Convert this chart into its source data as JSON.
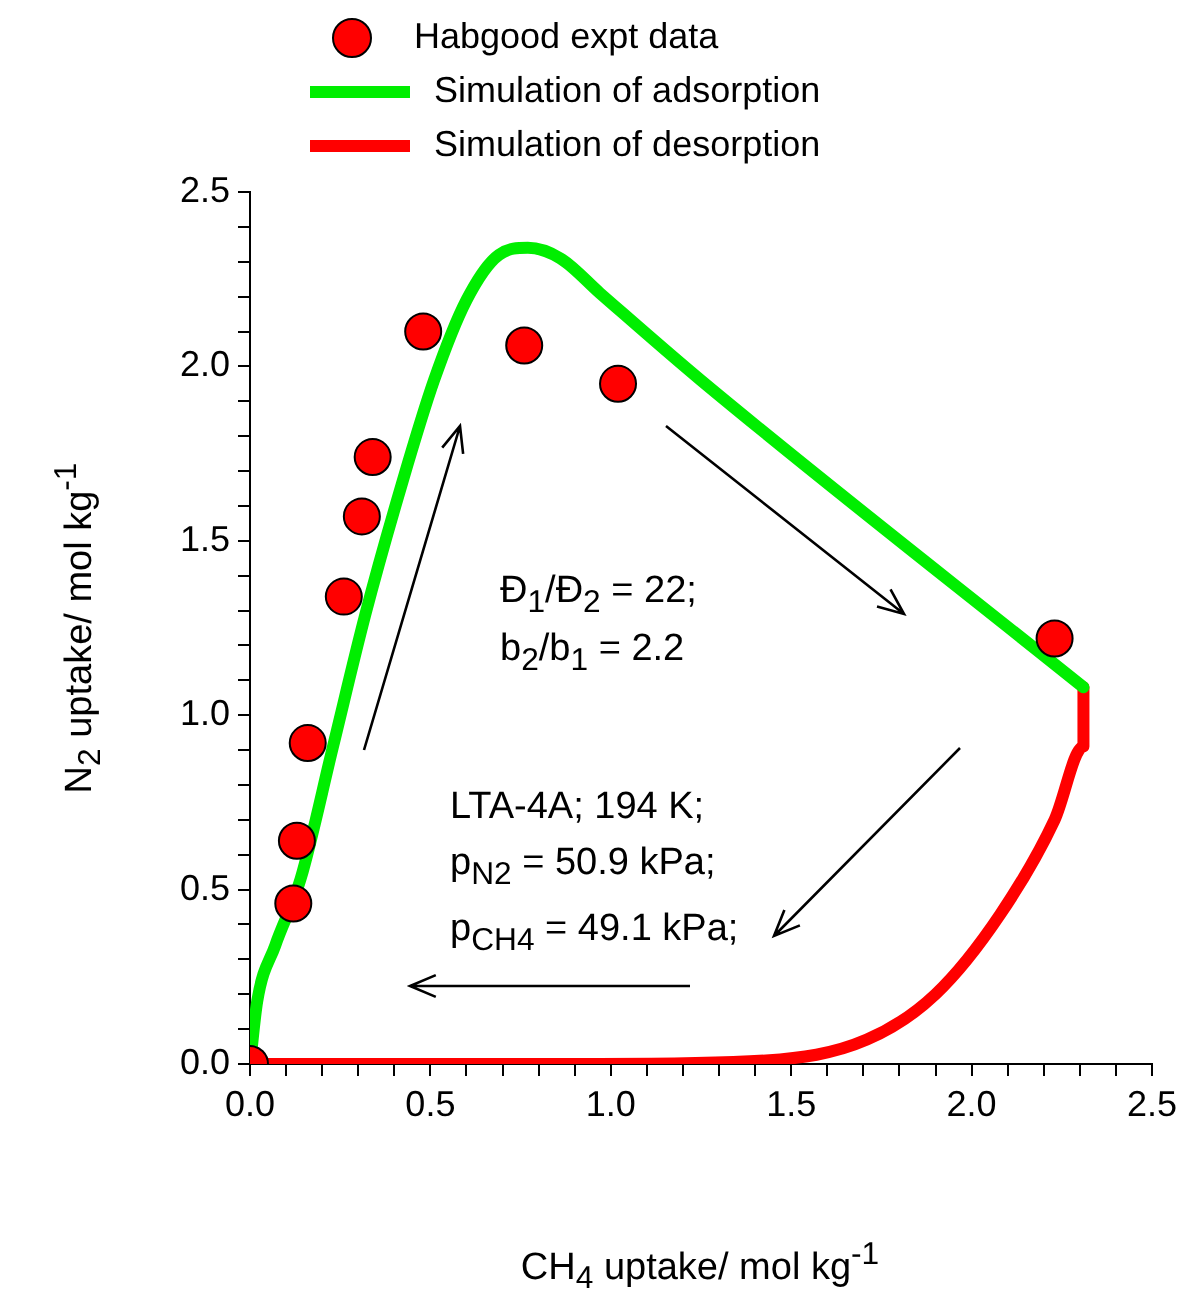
{
  "chart_data": {
    "type": "scatter",
    "xlabel": "CH$_{4}$ uptake/ mol kg$^{-1}$",
    "ylabel": "N$_{2}$ uptake/ mol kg$^{-1}$",
    "legend": "top",
    "grid": false,
    "xlim": [
      0,
      2.5
    ],
    "ylim": [
      0,
      2.5
    ],
    "xticks": [
      {
        "value": 0,
        "label": "0.0"
      },
      {
        "value": 0.1,
        "label": null
      },
      {
        "value": 0.2,
        "label": null
      },
      {
        "value": 0.3,
        "label": null
      },
      {
        "value": 0.4,
        "label": null
      },
      {
        "value": 0.5,
        "label": "0.5"
      },
      {
        "value": 0.6,
        "label": null
      },
      {
        "value": 0.7,
        "label": null
      },
      {
        "value": 0.8,
        "label": null
      },
      {
        "value": 0.9,
        "label": null
      },
      {
        "value": 1,
        "label": "1.0"
      },
      {
        "value": 1.1,
        "label": null
      },
      {
        "value": 1.2,
        "label": null
      },
      {
        "value": 1.3,
        "label": null
      },
      {
        "value": 1.4,
        "label": null
      },
      {
        "value": 1.5,
        "label": "1.5"
      },
      {
        "value": 1.6,
        "label": null
      },
      {
        "value": 1.7,
        "label": null
      },
      {
        "value": 1.8,
        "label": null
      },
      {
        "value": 1.9,
        "label": null
      },
      {
        "value": 2,
        "label": "2.0"
      },
      {
        "value": 2.1,
        "label": null
      },
      {
        "value": 2.2,
        "label": null
      },
      {
        "value": 2.3,
        "label": null
      },
      {
        "value": 2.4,
        "label": null
      },
      {
        "value": 2.5,
        "label": "2.5"
      }
    ],
    "yticks": [
      {
        "value": 0,
        "label": "0.0"
      },
      {
        "value": 0.1,
        "label": null
      },
      {
        "value": 0.2,
        "label": null
      },
      {
        "value": 0.3,
        "label": null
      },
      {
        "value": 0.4,
        "label": null
      },
      {
        "value": 0.5,
        "label": "0.5"
      },
      {
        "value": 0.6,
        "label": null
      },
      {
        "value": 0.7,
        "label": null
      },
      {
        "value": 0.8,
        "label": null
      },
      {
        "value": 0.9,
        "label": null
      },
      {
        "value": 1,
        "label": "1.0"
      },
      {
        "value": 1.1,
        "label": null
      },
      {
        "value": 1.2,
        "label": null
      },
      {
        "value": 1.3,
        "label": null
      },
      {
        "value": 1.4,
        "label": null
      },
      {
        "value": 1.5,
        "label": "1.5"
      },
      {
        "value": 1.6,
        "label": null
      },
      {
        "value": 1.7,
        "label": null
      },
      {
        "value": 1.8,
        "label": null
      },
      {
        "value": 1.9,
        "label": null
      },
      {
        "value": 2,
        "label": "2.0"
      },
      {
        "value": 2.1,
        "label": null
      },
      {
        "value": 2.2,
        "label": null
      },
      {
        "value": 2.3,
        "label": null
      },
      {
        "value": 2.4,
        "label": null
      },
      {
        "value": 2.5,
        "label": "2.5"
      }
    ],
    "series": [
      {
        "name": "Habgood expt data",
        "type": "scatter",
        "marker": "circle",
        "color": "#ff0000",
        "x": [
          0,
          0.12,
          0.13,
          0.16,
          0.26,
          0.31,
          0.34,
          0.48,
          0.76,
          1.02,
          2.23
        ],
        "values": [
          0,
          0.46,
          0.64,
          0.92,
          1.34,
          1.57,
          1.74,
          2.1,
          2.06,
          1.95,
          1.22
        ]
      },
      {
        "name": "Simulation of adsorption",
        "type": "line",
        "color": "#00ee00",
        "x": [
          0,
          0.02,
          0.07,
          0.14,
          0.23,
          0.32,
          0.42,
          0.51,
          0.6,
          0.69,
          0.77,
          0.86,
          0.97,
          1.25,
          2.31
        ],
        "values": [
          0,
          0.18,
          0.34,
          0.53,
          0.91,
          1.29,
          1.66,
          1.96,
          2.19,
          2.32,
          2.34,
          2.31,
          2.21,
          1.96,
          1.08
        ]
      },
      {
        "name": "Simulation of desorption",
        "type": "line",
        "color": "#ff0000",
        "x": [
          0,
          0.97,
          1.43,
          1.71,
          1.9,
          2.08,
          2.23,
          2.31,
          2.31
        ],
        "values": [
          0,
          0,
          0.01,
          0.07,
          0.2,
          0.43,
          0.7,
          0.91,
          1.08
        ]
      }
    ],
    "annotations": [
      "Đ$_{1}$/Đ$_{2}$ = 22;",
      "b$_{2}$/b$_{1}$ = 2.2",
      "LTA-4A; 194 K;",
      "p$_{N2}$ = 50.9 kPa;",
      "p$_{CH4}$ = 49.1 kPa;"
    ]
  }
}
